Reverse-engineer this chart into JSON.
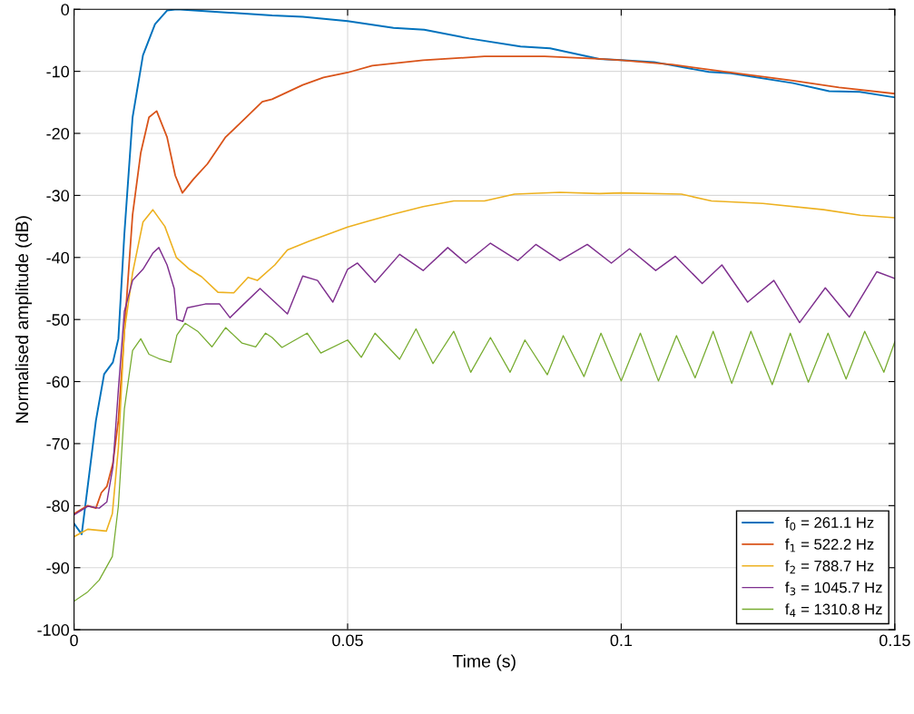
{
  "chart_data": {
    "type": "line",
    "xlabel": "Time (s)",
    "ylabel": "Normalised amplitude (dB)",
    "xlim": [
      0,
      0.15
    ],
    "ylim": [
      -100,
      0
    ],
    "xticks": [
      0,
      0.05,
      0.1,
      0.15
    ],
    "yticks": [
      -100,
      -90,
      -80,
      -70,
      -60,
      -50,
      -40,
      -30,
      -20,
      -10,
      0
    ],
    "grid": true,
    "legend": "bottom right",
    "marker": "none",
    "line_style": "solid",
    "series": [
      {
        "name": "f$_{0}$ = 261.1 Hz",
        "color": "#0072bd",
        "x": [
          0,
          0.0014,
          0.0025,
          0.004,
          0.0055,
          0.0071,
          0.0081,
          0.0092,
          0.0107,
          0.0126,
          0.0148,
          0.017,
          0.0188,
          0.0362,
          0.0418,
          0.05,
          0.0584,
          0.064,
          0.0722,
          0.0816,
          0.087,
          0.096,
          0.1,
          0.106,
          0.116,
          0.12,
          0.1314,
          0.138,
          0.1436,
          0.15
        ],
        "values": [
          -82.9,
          -84.6,
          -76.9,
          -66.3,
          -58.8,
          -56.9,
          -53.1,
          -36.2,
          -17.4,
          -7.4,
          -2.4,
          -0.2,
          0,
          -1.0,
          -1.2,
          -1.9,
          -3.0,
          -3.3,
          -4.7,
          -6.0,
          -6.3,
          -8.0,
          -8.2,
          -8.5,
          -10.1,
          -10.3,
          -11.9,
          -13.2,
          -13.3,
          -14.2
        ]
      },
      {
        "name": "f$_{1}$ = 522.2 Hz",
        "color": "#d95319",
        "x": [
          0,
          0.0025,
          0.004,
          0.005,
          0.006,
          0.0071,
          0.0081,
          0.0092,
          0.0107,
          0.0122,
          0.0137,
          0.0151,
          0.017,
          0.0185,
          0.0198,
          0.0218,
          0.0244,
          0.0277,
          0.0315,
          0.0344,
          0.0362,
          0.0418,
          0.0456,
          0.05,
          0.0545,
          0.0638,
          0.075,
          0.086,
          0.096,
          0.1,
          0.1093,
          0.12,
          0.1314,
          0.1398,
          0.15
        ],
        "values": [
          -81.3,
          -80.0,
          -80.4,
          -77.9,
          -76.9,
          -73.2,
          -66.3,
          -51.9,
          -33.1,
          -23.1,
          -17.4,
          -16.4,
          -20.6,
          -26.8,
          -29.6,
          -27.4,
          -24.9,
          -20.6,
          -17.4,
          -14.9,
          -14.5,
          -12.2,
          -11.0,
          -10.2,
          -9.1,
          -8.2,
          -7.6,
          -7.6,
          -8.0,
          -8.2,
          -8.9,
          -10.2,
          -11.5,
          -12.6,
          -13.6
        ]
      },
      {
        "name": "f$_{2}$ = 788.7 Hz",
        "color": "#edb120",
        "x": [
          0,
          0.0025,
          0.0059,
          0.007,
          0.0081,
          0.0092,
          0.0107,
          0.0126,
          0.0144,
          0.0166,
          0.0187,
          0.0211,
          0.0233,
          0.0263,
          0.0292,
          0.0318,
          0.0335,
          0.0367,
          0.039,
          0.0429,
          0.05,
          0.0539,
          0.0584,
          0.0638,
          0.0694,
          0.075,
          0.0805,
          0.0888,
          0.096,
          0.1,
          0.111,
          0.1165,
          0.1259,
          0.137,
          0.1437,
          0.15
        ],
        "values": [
          -85.0,
          -83.8,
          -84.1,
          -81.3,
          -70.7,
          -51.9,
          -42.5,
          -34.3,
          -32.3,
          -35.0,
          -40.0,
          -41.9,
          -43.1,
          -45.6,
          -45.7,
          -43.2,
          -43.7,
          -41.2,
          -38.8,
          -37.4,
          -35.1,
          -34.1,
          -33.0,
          -31.8,
          -30.9,
          -30.9,
          -29.8,
          -29.5,
          -29.7,
          -29.6,
          -29.8,
          -30.9,
          -31.3,
          -32.3,
          -33.2,
          -33.6
        ]
      },
      {
        "name": "f$_{3}$ = 1045.7 Hz",
        "color": "#7e2f8e",
        "x": [
          0,
          0.0025,
          0.0046,
          0.006,
          0.0071,
          0.0081,
          0.0092,
          0.0107,
          0.0126,
          0.0144,
          0.0155,
          0.017,
          0.0183,
          0.0188,
          0.0199,
          0.0207,
          0.024,
          0.0266,
          0.0285,
          0.0307,
          0.034,
          0.0362,
          0.039,
          0.0418,
          0.0445,
          0.0473,
          0.05,
          0.0518,
          0.055,
          0.0595,
          0.0638,
          0.0683,
          0.0716,
          0.0761,
          0.0811,
          0.0844,
          0.0888,
          0.0938,
          0.0982,
          0.1015,
          0.1063,
          0.1099,
          0.1148,
          0.1184,
          0.1231,
          0.1279,
          0.1326,
          0.1373,
          0.1417,
          0.1467,
          0.15
        ],
        "values": [
          -81.5,
          -80.1,
          -80.4,
          -79.4,
          -73.8,
          -61.3,
          -48.7,
          -43.7,
          -41.9,
          -39.3,
          -38.4,
          -41.2,
          -45.0,
          -50.0,
          -50.3,
          -48.1,
          -47.5,
          -47.5,
          -49.7,
          -47.8,
          -45.0,
          -46.8,
          -49.1,
          -43.0,
          -43.7,
          -47.2,
          -41.9,
          -40.9,
          -44.0,
          -39.5,
          -42.1,
          -38.4,
          -40.9,
          -37.7,
          -40.5,
          -37.9,
          -40.5,
          -37.9,
          -40.9,
          -38.6,
          -42.1,
          -39.8,
          -44.2,
          -41.2,
          -47.2,
          -43.7,
          -50.5,
          -44.9,
          -49.6,
          -42.3,
          -43.4
        ]
      },
      {
        "name": "f$_{4}$ = 1310.8 Hz",
        "color": "#77ac30",
        "x": [
          0,
          0.0025,
          0.0046,
          0.007,
          0.0081,
          0.0092,
          0.0107,
          0.0122,
          0.0137,
          0.0155,
          0.0177,
          0.0188,
          0.0203,
          0.0226,
          0.0252,
          0.0277,
          0.0307,
          0.0332,
          0.035,
          0.0362,
          0.038,
          0.0426,
          0.0451,
          0.05,
          0.0525,
          0.055,
          0.0595,
          0.0625,
          0.0656,
          0.0694,
          0.0725,
          0.0761,
          0.0797,
          0.0824,
          0.0865,
          0.0894,
          0.0932,
          0.0963,
          0.1,
          0.1035,
          0.1068,
          0.1101,
          0.1135,
          0.1168,
          0.1202,
          0.1237,
          0.1276,
          0.1309,
          0.1342,
          0.1378,
          0.1411,
          0.1445,
          0.148,
          0.15
        ],
        "values": [
          -95.4,
          -93.9,
          -92.0,
          -88.2,
          -80.1,
          -64.4,
          -55.0,
          -53.1,
          -55.6,
          -56.3,
          -56.9,
          -52.5,
          -50.6,
          -51.9,
          -54.4,
          -51.3,
          -53.8,
          -54.4,
          -52.2,
          -52.9,
          -54.5,
          -52.2,
          -55.4,
          -53.3,
          -56.1,
          -52.2,
          -56.4,
          -51.5,
          -57.1,
          -51.9,
          -58.5,
          -52.9,
          -58.5,
          -53.3,
          -58.9,
          -52.6,
          -59.2,
          -52.2,
          -59.9,
          -52.2,
          -59.9,
          -52.6,
          -59.4,
          -51.9,
          -60.3,
          -51.9,
          -60.5,
          -52.2,
          -60.1,
          -52.2,
          -59.6,
          -51.9,
          -58.5,
          -53.6
        ]
      }
    ]
  }
}
